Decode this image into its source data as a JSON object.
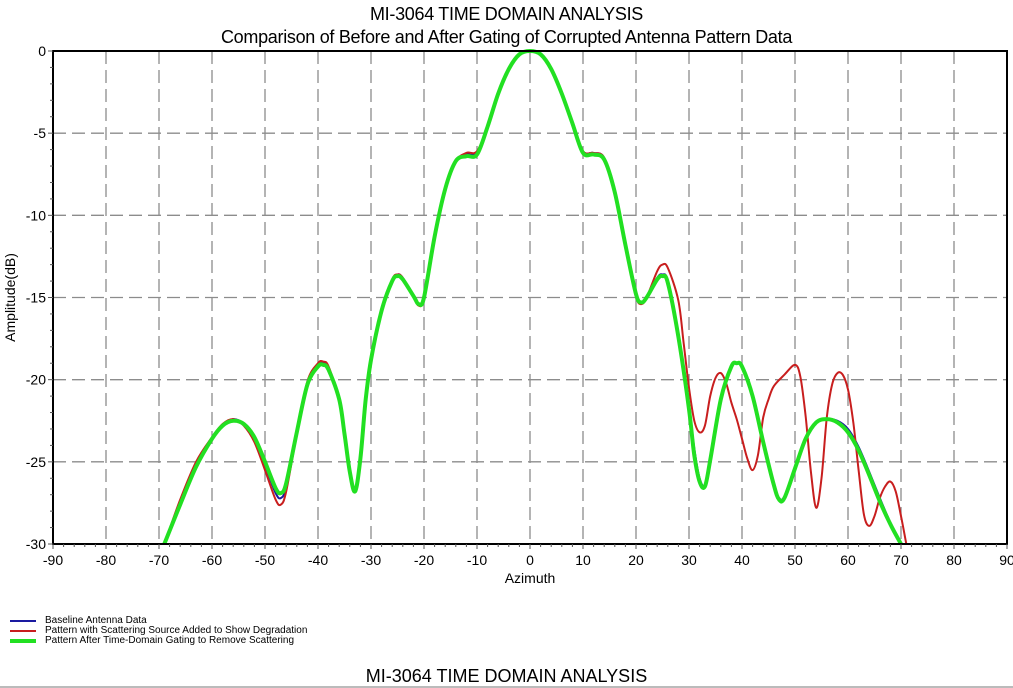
{
  "header": {
    "title": "MI-3064 TIME DOMAIN ANALYSIS",
    "subtitle": "Comparison of Before and After Gating of Corrupted Antenna Pattern Data"
  },
  "footer": {
    "title": "MI-3064 TIME DOMAIN ANALYSIS"
  },
  "chart_data": {
    "type": "line",
    "title": "MI-3064 TIME DOMAIN ANALYSIS",
    "subtitle": "Comparison of Before and After Gating of Corrupted Antenna Pattern Data",
    "xlabel": "Azimuth",
    "ylabel": "Amplitude(dB)",
    "xlim": [
      -90,
      90
    ],
    "ylim": [
      -30,
      0
    ],
    "xticks": [
      -90,
      -80,
      -70,
      -60,
      -50,
      -40,
      -30,
      -20,
      -10,
      0,
      10,
      20,
      30,
      40,
      50,
      60,
      70,
      80,
      90
    ],
    "yticks": [
      0,
      -5,
      -10,
      -15,
      -20,
      -25,
      -30
    ],
    "grid": true,
    "legend_position": "bottom-left",
    "series": [
      {
        "name": "Baseline Antenna Data",
        "color": "#1a1aa0",
        "width": 2,
        "x": [
          -69,
          -66,
          -63,
          -60,
          -58,
          -56,
          -54,
          -52,
          -50,
          -48,
          -47,
          -46,
          -44,
          -42,
          -40,
          -39,
          -38,
          -36,
          -35,
          -34,
          -33,
          -32,
          -31,
          -30,
          -28,
          -26,
          -25,
          -24,
          -22,
          -21,
          -20,
          -18,
          -16,
          -14,
          -12,
          -10,
          -8,
          -6,
          -4,
          -2,
          0,
          2,
          4,
          6,
          8,
          10,
          12,
          14,
          16,
          18,
          20,
          21,
          22,
          24,
          25,
          26,
          28,
          30,
          31,
          32,
          33,
          34,
          36,
          38,
          39,
          40,
          42,
          44,
          46,
          47,
          48,
          50,
          52,
          54,
          56,
          58,
          60,
          62,
          64,
          66,
          68,
          70
        ],
        "y": [
          -30,
          -27.5,
          -25.2,
          -23.6,
          -22.8,
          -22.4,
          -22.7,
          -23.6,
          -25.2,
          -26.9,
          -27.2,
          -26.5,
          -23.2,
          -20.2,
          -19.1,
          -19.0,
          -19.3,
          -21.2,
          -23.3,
          -25.6,
          -26.8,
          -24.8,
          -21.2,
          -18.8,
          -15.8,
          -14.0,
          -13.6,
          -13.8,
          -14.9,
          -15.4,
          -15.0,
          -11.3,
          -8.4,
          -6.7,
          -6.3,
          -6.2,
          -4.6,
          -2.6,
          -1.1,
          -0.2,
          0,
          -0.2,
          -1.1,
          -2.6,
          -4.4,
          -6.1,
          -6.2,
          -6.5,
          -8.6,
          -11.8,
          -14.8,
          -15.3,
          -15.0,
          -13.8,
          -13.6,
          -14.0,
          -17.2,
          -21.5,
          -24.2,
          -26.0,
          -26.4,
          -24.8,
          -21.2,
          -19.3,
          -19.0,
          -19.2,
          -21.0,
          -23.8,
          -26.4,
          -27.2,
          -27.1,
          -25.3,
          -23.6,
          -22.6,
          -22.4,
          -22.5,
          -23.0,
          -24.1,
          -25.6,
          -27.2,
          -28.7,
          -30
        ]
      },
      {
        "name": "Pattern with Scattering Source Added to Show Degradation",
        "color": "#c81e1e",
        "width": 2,
        "x": [
          -69,
          -66,
          -63,
          -60,
          -58,
          -56,
          -54,
          -52,
          -50,
          -48,
          -47,
          -46,
          -44,
          -42,
          -40,
          -39,
          -38,
          -36,
          -35,
          -34,
          -33,
          -32,
          -31,
          -30,
          -28,
          -26,
          -25,
          -24,
          -22,
          -21,
          -20,
          -18,
          -16,
          -14,
          -12,
          -10,
          -8,
          -6,
          -4,
          -2,
          0,
          2,
          4,
          6,
          8,
          10,
          12,
          14,
          16,
          18,
          20,
          21,
          22,
          24,
          25,
          26,
          28,
          29,
          30,
          31,
          32,
          33,
          34,
          35,
          36,
          37,
          38,
          39,
          40,
          41,
          42,
          43,
          44,
          45,
          46,
          48,
          50,
          51,
          52,
          53,
          54,
          55,
          56,
          57,
          58,
          59,
          60,
          61,
          62,
          63,
          64,
          65,
          66,
          67,
          68,
          69,
          70,
          71
        ],
        "y": [
          -30,
          -27.3,
          -25.0,
          -23.5,
          -22.7,
          -22.4,
          -22.8,
          -23.8,
          -25.5,
          -27.3,
          -27.6,
          -26.8,
          -23.3,
          -20.1,
          -19.0,
          -18.9,
          -19.2,
          -21.2,
          -23.3,
          -25.6,
          -26.8,
          -24.8,
          -21.2,
          -18.8,
          -15.8,
          -13.9,
          -13.6,
          -13.8,
          -14.9,
          -15.5,
          -15.0,
          -11.3,
          -8.4,
          -6.7,
          -6.2,
          -6.1,
          -4.6,
          -2.6,
          -1.1,
          -0.2,
          0,
          -0.2,
          -1.1,
          -2.6,
          -4.4,
          -6.1,
          -6.2,
          -6.5,
          -8.6,
          -11.8,
          -14.9,
          -15.4,
          -15.0,
          -13.4,
          -13.0,
          -13.2,
          -15.2,
          -17.8,
          -20.5,
          -22.5,
          -23.2,
          -22.8,
          -21.0,
          -19.9,
          -19.6,
          -20.2,
          -21.4,
          -22.4,
          -23.6,
          -24.8,
          -25.5,
          -24.6,
          -22.3,
          -21.2,
          -20.4,
          -19.7,
          -19.1,
          -19.8,
          -22.2,
          -25.6,
          -27.8,
          -26.0,
          -22.3,
          -20.3,
          -19.6,
          -19.7,
          -20.6,
          -22.6,
          -25.5,
          -28.2,
          -28.9,
          -28.3,
          -27.2,
          -26.5,
          -26.2,
          -26.8,
          -28.3,
          -30
        ]
      },
      {
        "name": "Pattern After Time-Domain Gating to Remove Scattering",
        "color": "#22e022",
        "width": 4,
        "x": [
          -69,
          -66,
          -63,
          -60,
          -58,
          -56,
          -54,
          -52,
          -50,
          -48,
          -47,
          -46,
          -44,
          -42,
          -40,
          -39,
          -38,
          -36,
          -35,
          -34,
          -33,
          -32,
          -31,
          -30,
          -28,
          -26,
          -25,
          -24,
          -22,
          -21,
          -20,
          -18,
          -16,
          -14,
          -12,
          -10,
          -8,
          -6,
          -4,
          -2,
          0,
          2,
          4,
          6,
          8,
          10,
          12,
          14,
          16,
          18,
          20,
          21,
          22,
          24,
          25,
          26,
          28,
          30,
          31,
          32,
          33,
          34,
          36,
          38,
          39,
          40,
          42,
          44,
          46,
          47,
          48,
          50,
          52,
          54,
          56,
          58,
          60,
          62,
          64,
          66,
          68,
          70
        ],
        "y": [
          -30,
          -27.6,
          -25.3,
          -23.6,
          -22.8,
          -22.5,
          -22.7,
          -23.5,
          -25.0,
          -26.6,
          -26.9,
          -26.3,
          -23.2,
          -20.3,
          -19.2,
          -19.1,
          -19.4,
          -21.2,
          -23.3,
          -25.6,
          -26.8,
          -24.8,
          -21.2,
          -18.8,
          -15.8,
          -14.0,
          -13.7,
          -13.9,
          -14.9,
          -15.4,
          -15.0,
          -11.3,
          -8.4,
          -6.7,
          -6.4,
          -6.3,
          -4.6,
          -2.6,
          -1.1,
          -0.2,
          0,
          -0.2,
          -1.1,
          -2.6,
          -4.4,
          -6.2,
          -6.3,
          -6.6,
          -8.6,
          -11.8,
          -14.8,
          -15.3,
          -15.0,
          -13.9,
          -13.7,
          -14.1,
          -17.4,
          -21.8,
          -24.6,
          -26.2,
          -26.5,
          -24.9,
          -21.2,
          -19.2,
          -19.0,
          -19.2,
          -21.0,
          -23.8,
          -26.4,
          -27.3,
          -27.2,
          -25.4,
          -23.6,
          -22.6,
          -22.4,
          -22.6,
          -23.2,
          -24.3,
          -25.8,
          -27.4,
          -28.8,
          -30
        ]
      }
    ]
  }
}
